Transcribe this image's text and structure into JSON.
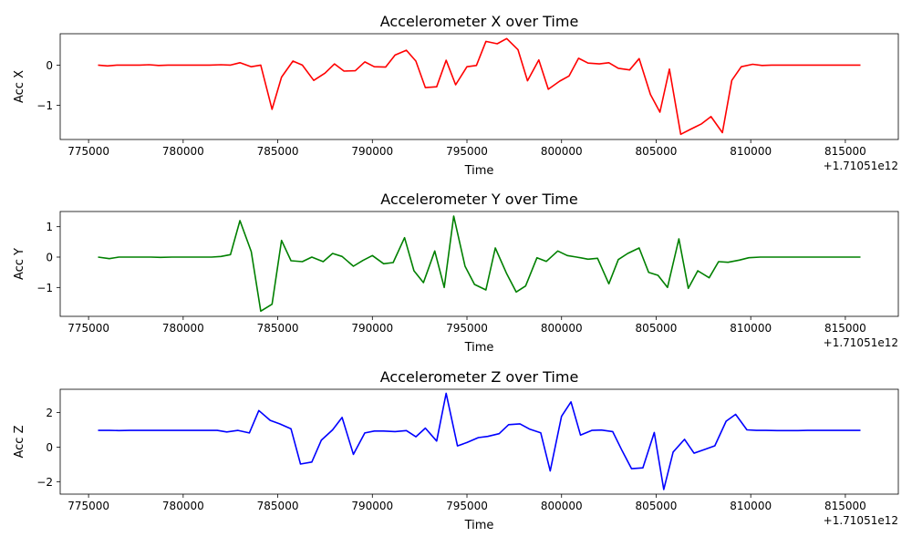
{
  "figure": {
    "background": "#ffffff"
  },
  "chart_data": [
    {
      "type": "line",
      "title": "Accelerometer X over Time",
      "xlabel": "Time",
      "ylabel": "Acc X",
      "offset_label": "+1.71051e12",
      "color": "#ff0000",
      "xlim": [
        773500,
        817800
      ],
      "ylim": [
        -1.85,
        0.78
      ],
      "xticks": [
        775000,
        780000,
        785000,
        790000,
        795000,
        800000,
        805000,
        810000,
        815000
      ],
      "xtick_labels": [
        "775000",
        "780000",
        "785000",
        "790000",
        "795000",
        "800000",
        "805000",
        "810000",
        "815000"
      ],
      "yticks": [
        0,
        -1
      ],
      "ytick_labels": [
        "0",
        "−1"
      ],
      "x": [
        775500,
        776000,
        776500,
        777100,
        777700,
        778200,
        778700,
        779200,
        779800,
        780300,
        780900,
        781400,
        782000,
        782500,
        783000,
        783600,
        784100,
        784700,
        785200,
        785800,
        786300,
        786900,
        787500,
        788000,
        788500,
        789100,
        789600,
        790100,
        790700,
        791200,
        791800,
        792300,
        792800,
        793400,
        793900,
        794400,
        795000,
        795500,
        796000,
        796600,
        797100,
        797700,
        798200,
        798800,
        799300,
        799900,
        800400,
        800900,
        801400,
        802000,
        802500,
        803000,
        803600,
        804100,
        804700,
        805200,
        805700,
        806300,
        806800,
        807400,
        807900,
        808500,
        809000,
        809500,
        810100,
        810600,
        811100,
        811700,
        812200,
        812800,
        813300,
        813800,
        814400,
        814900,
        815500,
        815800
      ],
      "y": [
        0.0,
        -0.02,
        0.0,
        0.0,
        0.0,
        0.01,
        -0.01,
        0.0,
        0.0,
        0.0,
        0.0,
        0.0,
        0.01,
        0.0,
        0.06,
        -0.04,
        0.0,
        -1.1,
        -0.3,
        0.1,
        0.0,
        -0.38,
        -0.2,
        0.03,
        -0.15,
        -0.14,
        0.08,
        -0.04,
        -0.05,
        0.25,
        0.37,
        0.1,
        -0.56,
        -0.54,
        0.12,
        -0.49,
        -0.04,
        -0.01,
        0.59,
        0.53,
        0.66,
        0.38,
        -0.39,
        0.13,
        -0.6,
        -0.4,
        -0.27,
        0.17,
        0.05,
        0.03,
        0.06,
        -0.08,
        -0.12,
        0.16,
        -0.73,
        -1.17,
        -0.1,
        -1.72,
        -1.6,
        -1.46,
        -1.28,
        -1.68,
        -0.38,
        -0.04,
        0.02,
        -0.01,
        0.0,
        0.0,
        0.0,
        0.0,
        0.0,
        0.0,
        0.0,
        0.0,
        0.0,
        0.0
      ]
    },
    {
      "type": "line",
      "title": "Accelerometer Y over Time",
      "xlabel": "Time",
      "ylabel": "Acc Y",
      "offset_label": "+1.71051e12",
      "color": "#008000",
      "xlim": [
        773500,
        817800
      ],
      "ylim": [
        -1.95,
        1.5
      ],
      "xticks": [
        775000,
        780000,
        785000,
        790000,
        795000,
        800000,
        805000,
        810000,
        815000
      ],
      "xtick_labels": [
        "775000",
        "780000",
        "785000",
        "790000",
        "795000",
        "800000",
        "805000",
        "810000",
        "815000"
      ],
      "yticks": [
        1,
        0,
        -1
      ],
      "ytick_labels": [
        "1",
        "0",
        "−1"
      ],
      "x": [
        775500,
        776100,
        776600,
        777200,
        777700,
        778300,
        778800,
        779400,
        779900,
        780500,
        781000,
        781500,
        782000,
        782500,
        783000,
        783600,
        784100,
        784700,
        785200,
        785700,
        786300,
        786800,
        787400,
        787900,
        788400,
        789000,
        789500,
        790000,
        790600,
        791100,
        791700,
        792200,
        792700,
        793300,
        793800,
        794300,
        794900,
        795400,
        796000,
        796500,
        797100,
        797600,
        798100,
        798700,
        799200,
        799800,
        800300,
        800800,
        801400,
        801900,
        802500,
        803000,
        803500,
        804100,
        804600,
        805100,
        805600,
        806200,
        806700,
        807200,
        807800,
        808300,
        808800,
        809400,
        809900,
        810500,
        811000,
        811500,
        812100,
        812600,
        813200,
        813700,
        814200,
        814700,
        815300,
        815800
      ],
      "y": [
        0.0,
        -0.05,
        0.0,
        0.0,
        0.0,
        0.0,
        -0.01,
        0.0,
        0.0,
        0.0,
        0.0,
        0.0,
        0.02,
        0.08,
        1.2,
        0.18,
        -1.78,
        -1.55,
        0.55,
        -0.12,
        -0.15,
        0.0,
        -0.15,
        0.12,
        0.02,
        -0.3,
        -0.11,
        0.05,
        -0.22,
        -0.18,
        0.64,
        -0.45,
        -0.84,
        0.2,
        -1.0,
        1.35,
        -0.3,
        -0.9,
        -1.08,
        0.3,
        -0.55,
        -1.15,
        -0.95,
        -0.02,
        -0.14,
        0.2,
        0.05,
        0.0,
        -0.07,
        -0.04,
        -0.88,
        -0.08,
        0.12,
        0.3,
        -0.5,
        -0.6,
        -1.0,
        0.6,
        -1.03,
        -0.45,
        -0.68,
        -0.15,
        -0.17,
        -0.1,
        -0.02,
        0.0,
        0.0,
        0.0,
        0.0,
        0.0,
        0.0,
        0.0,
        0.0,
        0.0,
        0.0,
        0.0
      ]
    },
    {
      "type": "line",
      "title": "Accelerometer Z over Time",
      "xlabel": "Time",
      "ylabel": "Acc Z",
      "offset_label": "+1.71051e12",
      "color": "#0000ff",
      "xlim": [
        773500,
        817800
      ],
      "ylim": [
        -2.72,
        3.35
      ],
      "xticks": [
        775000,
        780000,
        785000,
        790000,
        795000,
        800000,
        805000,
        810000,
        815000
      ],
      "xtick_labels": [
        "775000",
        "780000",
        "785000",
        "790000",
        "795000",
        "800000",
        "805000",
        "810000",
        "815000"
      ],
      "yticks": [
        2,
        0,
        -2
      ],
      "ytick_labels": [
        "2",
        "0",
        "−2"
      ],
      "x": [
        775500,
        776100,
        776600,
        777200,
        777800,
        778400,
        778900,
        779500,
        780100,
        780600,
        781200,
        781800,
        782300,
        782900,
        783500,
        784000,
        784600,
        785100,
        785700,
        786200,
        786800,
        787300,
        787900,
        788400,
        789000,
        789600,
        790100,
        790600,
        791200,
        791800,
        792300,
        792800,
        793400,
        793900,
        794500,
        795000,
        795600,
        796100,
        796700,
        797200,
        797800,
        798300,
        798900,
        799400,
        800000,
        800500,
        801000,
        801600,
        802100,
        802700,
        803200,
        803700,
        804300,
        804900,
        805400,
        805900,
        806500,
        807000,
        807600,
        808100,
        808700,
        809200,
        809800,
        810300,
        810800,
        811400,
        811900,
        812500,
        813000,
        813500,
        814100,
        814600,
        815200,
        815800
      ],
      "y": [
        0.97,
        0.97,
        0.96,
        0.97,
        0.97,
        0.97,
        0.97,
        0.97,
        0.97,
        0.97,
        0.97,
        0.97,
        0.88,
        0.97,
        0.82,
        2.12,
        1.55,
        1.35,
        1.06,
        -0.98,
        -0.86,
        0.4,
        1.0,
        1.72,
        -0.42,
        0.82,
        0.93,
        0.93,
        0.9,
        0.96,
        0.6,
        1.1,
        0.35,
        3.12,
        0.07,
        0.27,
        0.55,
        0.62,
        0.78,
        1.3,
        1.35,
        1.05,
        0.83,
        -1.38,
        1.78,
        2.62,
        0.7,
        0.97,
        0.99,
        0.9,
        -0.2,
        -1.25,
        -1.2,
        0.85,
        -2.45,
        -0.28,
        0.45,
        -0.35,
        -0.12,
        0.08,
        1.5,
        1.9,
        1.0,
        0.97,
        0.97,
        0.96,
        0.96,
        0.96,
        0.97,
        0.97,
        0.97,
        0.97,
        0.97,
        0.97
      ]
    }
  ]
}
